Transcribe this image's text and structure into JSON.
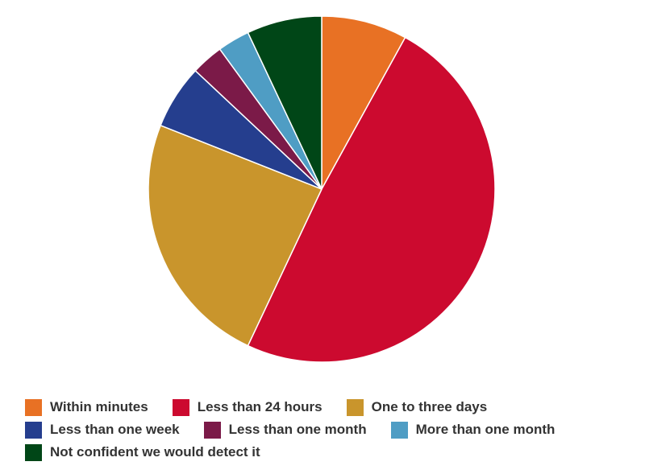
{
  "chart_data": {
    "type": "pie",
    "categories": [
      "Within minutes",
      "Less than 24 hours",
      "One to three days",
      "Less than one week",
      "Less than one month",
      "More than one month",
      "Not confident we would detect it"
    ],
    "values": [
      8,
      49,
      24,
      6,
      3,
      3,
      7
    ],
    "colors": [
      "#e87124",
      "#cc0a2f",
      "#c9952c",
      "#253e8e",
      "#7b1a48",
      "#4f9dc4",
      "#004617"
    ]
  }
}
